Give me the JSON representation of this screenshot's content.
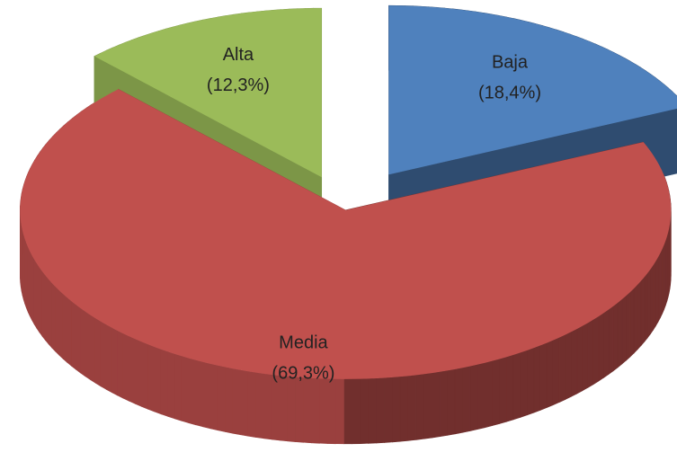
{
  "chart_data": {
    "type": "pie",
    "categories": [
      "Baja",
      "Media",
      "Alta"
    ],
    "values": [
      18.4,
      69.3,
      12.3
    ],
    "value_labels": [
      "(18,4%)",
      "(69,3%)",
      "(12,3%)"
    ],
    "colors": [
      "#4f81bd",
      "#c0504d",
      "#9bbb59"
    ]
  }
}
